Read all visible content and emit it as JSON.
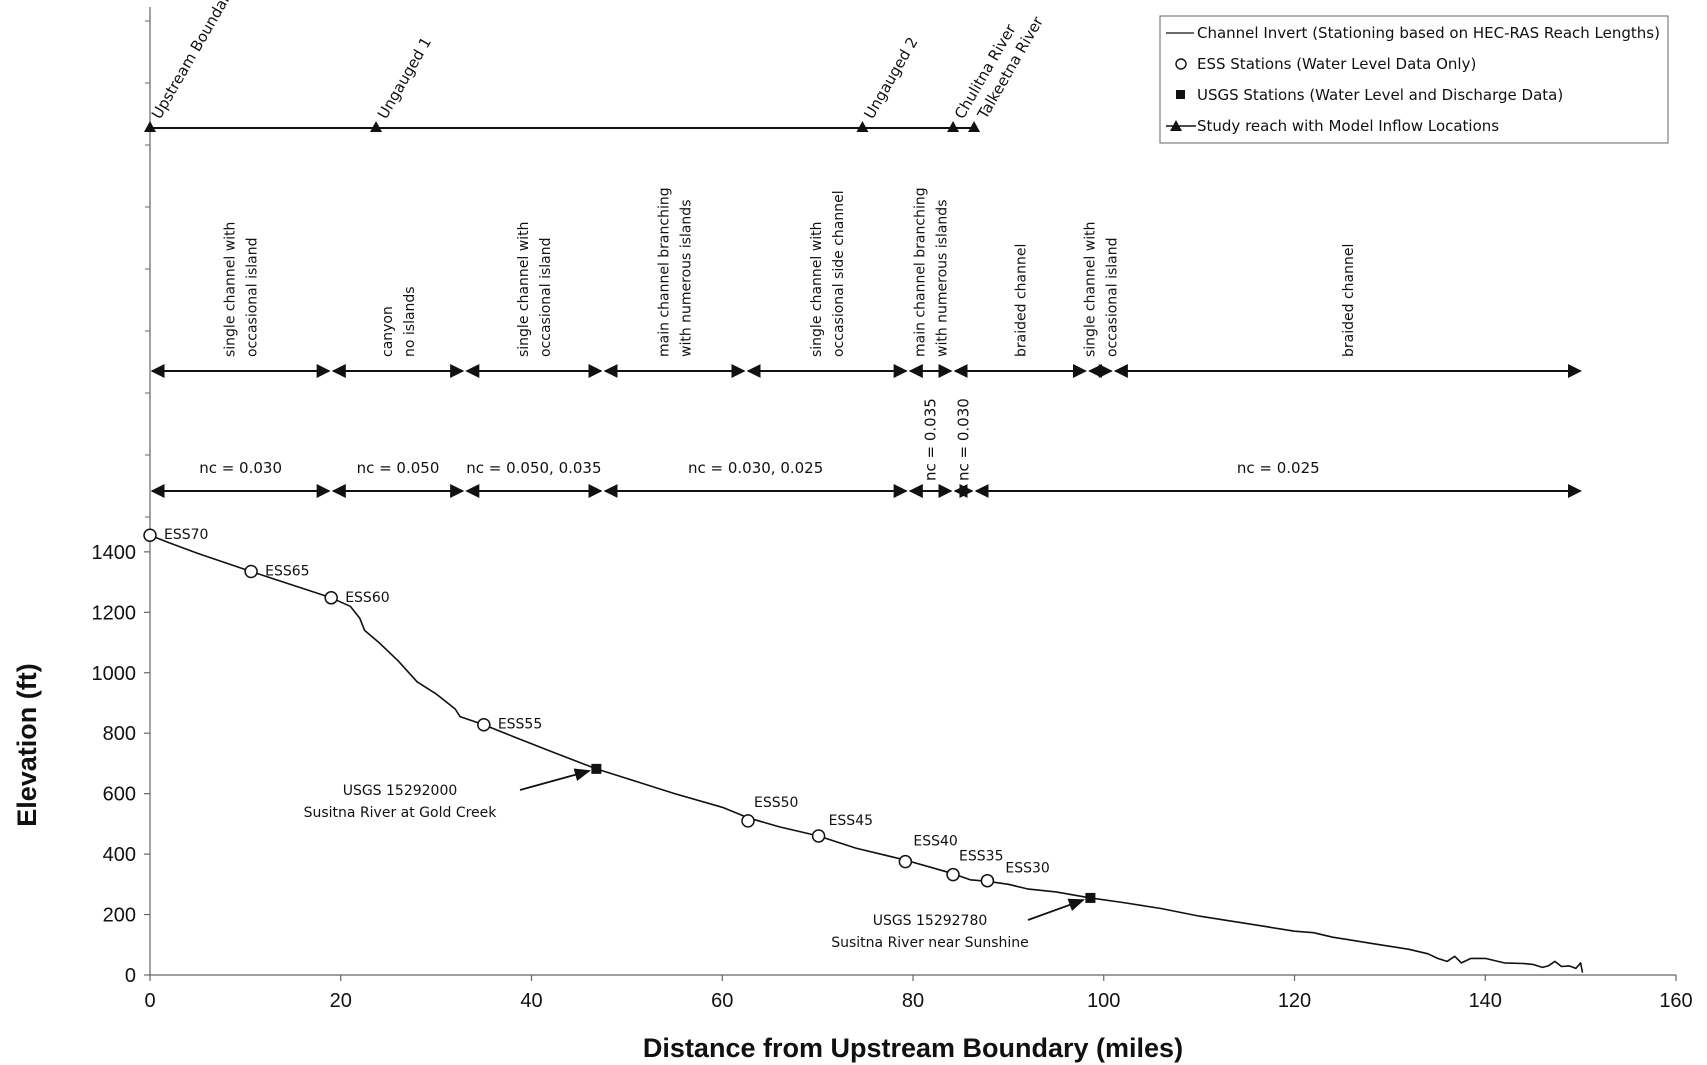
{
  "chart_data": {
    "type": "line",
    "xlabel": "Distance from Upstream Boundary (miles)",
    "ylabel": "Elevation (ft)",
    "xlim": [
      0,
      160
    ],
    "ylim": [
      0,
      1650
    ],
    "xticks": [
      "0",
      "20",
      "40",
      "60",
      "80",
      "100",
      "120",
      "140",
      "160"
    ],
    "yticks": [
      "0",
      "200",
      "400",
      "600",
      "800",
      "1000",
      "1200",
      "1400"
    ],
    "grid": false,
    "legend_position": "top-right",
    "legend": [
      {
        "label": "Channel Invert (Stationing based on HEC-RAS Reach Lengths)",
        "marker": "line"
      },
      {
        "label": "ESS Stations (Water Level Data Only)",
        "marker": "open-circle"
      },
      {
        "label": "USGS Stations (Water Level and Discharge Data)",
        "marker": "filled-square"
      },
      {
        "label": "Study reach with Model Inflow Locations",
        "marker": "triangle-line"
      }
    ],
    "series": [
      {
        "name": "Channel Invert (Stationing based on HEC-RAS Reach Lengths)",
        "x": [
          0,
          2,
          5,
          10.6,
          14,
          19,
          21,
          22,
          22.5,
          24,
          26,
          28,
          30,
          32,
          32.5,
          35,
          38,
          42,
          46.8,
          50,
          55,
          60,
          62.7,
          66,
          70.1,
          74,
          79.2,
          82,
          84.2,
          86,
          87.8,
          90,
          92,
          95,
          98.6,
          102,
          106,
          110,
          114,
          117,
          120,
          122,
          124,
          126,
          128,
          130,
          132,
          134,
          135,
          136,
          136.8,
          137.5,
          138.5,
          140,
          142,
          144,
          145,
          146,
          146.6,
          147.3,
          148,
          148.8,
          149.5,
          150,
          150.2
        ],
        "y": [
          1455,
          1430,
          1395,
          1335,
          1300,
          1248,
          1220,
          1180,
          1140,
          1100,
          1040,
          970,
          930,
          880,
          855,
          828,
          790,
          740,
          682,
          650,
          600,
          555,
          520,
          490,
          460,
          420,
          380,
          355,
          335,
          315,
          310,
          300,
          285,
          275,
          255,
          240,
          220,
          195,
          175,
          160,
          145,
          140,
          125,
          115,
          105,
          95,
          85,
          70,
          55,
          45,
          62,
          40,
          55,
          55,
          40,
          38,
          35,
          25,
          30,
          45,
          28,
          30,
          22,
          40,
          8
        ]
      }
    ],
    "ess_stations": [
      {
        "label": "ESS70",
        "x": 0,
        "y": 1455
      },
      {
        "label": "ESS65",
        "x": 10.6,
        "y": 1335
      },
      {
        "label": "ESS60",
        "x": 19,
        "y": 1248
      },
      {
        "label": "ESS55",
        "x": 35,
        "y": 828
      },
      {
        "label": "ESS50",
        "x": 62.7,
        "y": 510
      },
      {
        "label": "ESS45",
        "x": 70.1,
        "y": 460
      },
      {
        "label": "ESS40",
        "x": 79.2,
        "y": 375
      },
      {
        "label": "ESS35",
        "x": 84.2,
        "y": 332
      },
      {
        "label": "ESS30",
        "x": 87.8,
        "y": 312
      }
    ],
    "usgs_stations": [
      {
        "code": "USGS 15292000",
        "name": "Susitna River at Gold Creek",
        "x": 46.8,
        "y": 682
      },
      {
        "code": "USGS 15292780",
        "name": "Susitna River near Sunshine",
        "x": 98.6,
        "y": 255
      }
    ],
    "inflow_locations": [
      {
        "label": "Upstream Boundary",
        "x": 0
      },
      {
        "label": "Ungauged 1",
        "x": 23.7
      },
      {
        "label": "Ungauged 2",
        "x": 74.7
      },
      {
        "label": "Chulitna River",
        "x": 84.2
      },
      {
        "label": "Talkeetna River",
        "x": 86.4
      }
    ],
    "channel_types": [
      {
        "lines": [
          "single channel with",
          "occasional island"
        ],
        "start": 0,
        "end": 19
      },
      {
        "lines": [
          "canyon",
          "no islands"
        ],
        "start": 19,
        "end": 33
      },
      {
        "lines": [
          "single channel with",
          "occasional island"
        ],
        "start": 33,
        "end": 47.5
      },
      {
        "lines": [
          "main channel branching",
          "with numerous islands"
        ],
        "start": 47.5,
        "end": 62.5
      },
      {
        "lines": [
          "single channel with",
          "occasional side channel"
        ],
        "start": 62.5,
        "end": 79.5
      },
      {
        "lines": [
          "main channel branching",
          "with numerous islands"
        ],
        "start": 79.5,
        "end": 84.2
      },
      {
        "lines": [
          "braided channel"
        ],
        "start": 84.2,
        "end": 98.3
      },
      {
        "lines": [
          "single channel with",
          "occasional island"
        ],
        "start": 98.3,
        "end": 101
      },
      {
        "lines": [
          "braided channel"
        ],
        "start": 101,
        "end": 150.2
      }
    ],
    "roughness": [
      {
        "label": "nc = 0.030",
        "start": 0,
        "end": 19,
        "rotated": false
      },
      {
        "label": "nc = 0.050",
        "start": 19,
        "end": 33,
        "rotated": false
      },
      {
        "label": "nc = 0.050, 0.035",
        "start": 33,
        "end": 47.5,
        "rotated": false
      },
      {
        "label": "nc = 0.030, 0.025",
        "start": 47.5,
        "end": 79.5,
        "rotated": false
      },
      {
        "label": "nc = 0.035",
        "start": 79.5,
        "end": 84.2,
        "rotated": true
      },
      {
        "label": "nc = 0.030",
        "start": 84.2,
        "end": 86.4,
        "rotated": true
      },
      {
        "label": "nc = 0.025",
        "start": 86.4,
        "end": 150.2,
        "rotated": false
      }
    ]
  },
  "colors": {
    "line": "#111111",
    "axis": "#555555",
    "background": "#ffffff"
  }
}
